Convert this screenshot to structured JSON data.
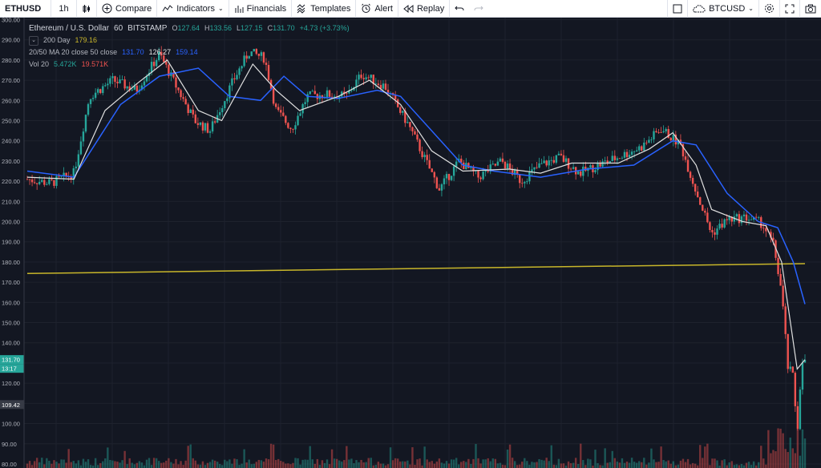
{
  "toolbar": {
    "symbol": "ETHUSD",
    "interval": "1h",
    "compare": "Compare",
    "indicators": "Indicators",
    "financials": "Financials",
    "templates": "Templates",
    "alert": "Alert",
    "replay": "Replay",
    "compare_symbol": "BTCUSD"
  },
  "legend": {
    "title": "Ethereum / U.S. Dollar",
    "interval": "60",
    "exchange": "BITSTAMP",
    "o_label": "O",
    "o": "127.64",
    "h_label": "H",
    "h": "133.56",
    "l_label": "L",
    "l": "127.15",
    "c_label": "C",
    "c": "131.70",
    "change": "+4.73 (+3.73%)",
    "ma200_name": "200 Day",
    "ma200": "179.16",
    "ma_name": "20/50 MA 20 close 50 close",
    "ma20": "131.70",
    "ma_mid": "126.27",
    "ma50": "159.14",
    "vol_name": "Vol 20",
    "vol": "5.472K",
    "vol_avg": "19.571K"
  },
  "price_axis": {
    "ticks": [
      "300.00",
      "290.00",
      "280.00",
      "270.00",
      "260.00",
      "250.00",
      "240.00",
      "230.00",
      "220.00",
      "210.00",
      "200.00",
      "190.00",
      "180.00",
      "170.00",
      "160.00",
      "150.00",
      "140.00",
      "131.70",
      "13:17",
      "120.00",
      "109.42",
      "100.00",
      "90.00",
      "80.00"
    ]
  },
  "colors": {
    "up": "#26a69a",
    "down": "#ef5350",
    "ma200": "#c8b62a",
    "ma50": "#2962ff",
    "ma20": "#e0e0e0",
    "background": "#131722"
  },
  "chart_data": {
    "type": "candlestick",
    "price_range": [
      78,
      301
    ],
    "ma200": [
      [
        0,
        174.3
      ],
      [
        1,
        179.2
      ]
    ],
    "price_path": [
      [
        0,
        221
      ],
      [
        0.03,
        219
      ],
      [
        0.06,
        224
      ],
      [
        0.08,
        262
      ],
      [
        0.11,
        270
      ],
      [
        0.14,
        265
      ],
      [
        0.17,
        283
      ],
      [
        0.19,
        268
      ],
      [
        0.215,
        250
      ],
      [
        0.235,
        245
      ],
      [
        0.265,
        270
      ],
      [
        0.285,
        284
      ],
      [
        0.305,
        281
      ],
      [
        0.32,
        255
      ],
      [
        0.34,
        246
      ],
      [
        0.36,
        262
      ],
      [
        0.385,
        263
      ],
      [
        0.41,
        262
      ],
      [
        0.43,
        273
      ],
      [
        0.46,
        267
      ],
      [
        0.49,
        248
      ],
      [
        0.515,
        228
      ],
      [
        0.53,
        216
      ],
      [
        0.555,
        230
      ],
      [
        0.58,
        222
      ],
      [
        0.61,
        230
      ],
      [
        0.635,
        220
      ],
      [
        0.66,
        228
      ],
      [
        0.685,
        232
      ],
      [
        0.71,
        224
      ],
      [
        0.735,
        228
      ],
      [
        0.76,
        232
      ],
      [
        0.79,
        237
      ],
      [
        0.815,
        246
      ],
      [
        0.84,
        238
      ],
      [
        0.86,
        215
      ],
      [
        0.88,
        194
      ],
      [
        0.9,
        201
      ],
      [
        0.925,
        202
      ],
      [
        0.945,
        199
      ],
      [
        0.96,
        188
      ],
      [
        0.97,
        165
      ],
      [
        0.978,
        128
      ],
      [
        0.985,
        123
      ],
      [
        0.99,
        95
      ],
      [
        0.995,
        127
      ],
      [
        1,
        131.7
      ]
    ],
    "ma20_path": [
      [
        0,
        222
      ],
      [
        0.06,
        221
      ],
      [
        0.1,
        255
      ],
      [
        0.14,
        268
      ],
      [
        0.18,
        280
      ],
      [
        0.22,
        255
      ],
      [
        0.25,
        250
      ],
      [
        0.29,
        278
      ],
      [
        0.32,
        265
      ],
      [
        0.35,
        255
      ],
      [
        0.4,
        262
      ],
      [
        0.44,
        270
      ],
      [
        0.48,
        258
      ],
      [
        0.52,
        235
      ],
      [
        0.56,
        225
      ],
      [
        0.62,
        226
      ],
      [
        0.66,
        224
      ],
      [
        0.7,
        229
      ],
      [
        0.76,
        229
      ],
      [
        0.8,
        236
      ],
      [
        0.83,
        244
      ],
      [
        0.86,
        228
      ],
      [
        0.88,
        206
      ],
      [
        0.92,
        200
      ],
      [
        0.95,
        198
      ],
      [
        0.97,
        180
      ],
      [
        0.99,
        127
      ],
      [
        1,
        131.7
      ]
    ],
    "ma50_path": [
      [
        0,
        225
      ],
      [
        0.06,
        222
      ],
      [
        0.12,
        258
      ],
      [
        0.17,
        272
      ],
      [
        0.22,
        276
      ],
      [
        0.26,
        262
      ],
      [
        0.3,
        260
      ],
      [
        0.33,
        272
      ],
      [
        0.36,
        262
      ],
      [
        0.4,
        261
      ],
      [
        0.45,
        265
      ],
      [
        0.48,
        262
      ],
      [
        0.52,
        245
      ],
      [
        0.56,
        228
      ],
      [
        0.6,
        225
      ],
      [
        0.66,
        222
      ],
      [
        0.72,
        226
      ],
      [
        0.78,
        228
      ],
      [
        0.83,
        240
      ],
      [
        0.86,
        238
      ],
      [
        0.9,
        214
      ],
      [
        0.94,
        200
      ],
      [
        0.965,
        197
      ],
      [
        0.985,
        180
      ],
      [
        1,
        159.14
      ]
    ]
  }
}
